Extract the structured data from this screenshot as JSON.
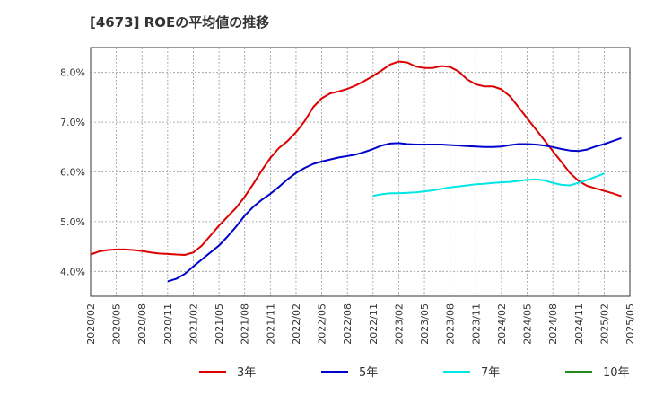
{
  "chart_data": {
    "type": "line",
    "title": "[4673]  ROEの平均値の推移",
    "xlabel": "",
    "ylabel": "",
    "ylim": [
      3.5,
      8.5
    ],
    "y_ticks": [
      4.0,
      5.0,
      6.0,
      7.0,
      8.0
    ],
    "y_tick_labels": [
      "4.0%",
      "5.0%",
      "6.0%",
      "7.0%",
      "8.0%"
    ],
    "x_tick_labels": [
      "2020/02",
      "2020/05",
      "2020/08",
      "2020/11",
      "2021/02",
      "2021/05",
      "2021/08",
      "2021/11",
      "2022/02",
      "2022/05",
      "2022/08",
      "2022/11",
      "2023/02",
      "2023/05",
      "2023/08",
      "2023/11",
      "2024/02",
      "2024/05",
      "2024/08",
      "2024/11",
      "2025/02",
      "2025/05"
    ],
    "x_start": "2020/02",
    "x_end": "2025/05",
    "grid": true,
    "legend_position": "bottom",
    "series": [
      {
        "name": "3年",
        "color": "#dd0000",
        "start": "2020/02",
        "values": [
          4.34,
          4.4,
          4.43,
          4.44,
          4.44,
          4.43,
          4.41,
          4.38,
          4.36,
          4.35,
          4.34,
          4.33,
          4.38,
          4.52,
          4.72,
          4.92,
          5.1,
          5.28,
          5.5,
          5.76,
          6.03,
          6.28,
          6.48,
          6.62,
          6.8,
          7.02,
          7.3,
          7.48,
          7.58,
          7.62,
          7.67,
          7.74,
          7.83,
          7.93,
          8.04,
          8.16,
          8.22,
          8.2,
          8.12,
          8.09,
          8.09,
          8.13,
          8.11,
          8.02,
          7.86,
          7.76,
          7.72,
          7.72,
          7.66,
          7.52,
          7.3,
          7.08,
          6.86,
          6.64,
          6.42,
          6.2,
          5.98,
          5.82,
          5.72,
          5.67,
          5.62,
          5.57,
          5.51
        ]
      },
      {
        "name": "5年",
        "color": "#0000cc",
        "start": "2020/11",
        "values": [
          3.8,
          3.85,
          3.95,
          4.1,
          4.24,
          4.38,
          4.52,
          4.7,
          4.9,
          5.12,
          5.3,
          5.44,
          5.56,
          5.7,
          5.85,
          5.98,
          6.08,
          6.16,
          6.21,
          6.25,
          6.29,
          6.32,
          6.35,
          6.4,
          6.46,
          6.53,
          6.57,
          6.58,
          6.56,
          6.55,
          6.55,
          6.55,
          6.55,
          6.54,
          6.53,
          6.52,
          6.51,
          6.5,
          6.5,
          6.51,
          6.54,
          6.56,
          6.56,
          6.55,
          6.53,
          6.5,
          6.46,
          6.43,
          6.42,
          6.45,
          6.51,
          6.56,
          6.62,
          6.68
        ]
      },
      {
        "name": "7年",
        "color": "#00e5e5",
        "start": "2022/11",
        "values": [
          5.52,
          5.55,
          5.57,
          5.57,
          5.58,
          5.59,
          5.61,
          5.63,
          5.66,
          5.69,
          5.71,
          5.73,
          5.75,
          5.76,
          5.78,
          5.79,
          5.8,
          5.82,
          5.84,
          5.85,
          5.83,
          5.78,
          5.74,
          5.73,
          5.78,
          5.84,
          5.9,
          5.97
        ]
      },
      {
        "name": "10年",
        "color": "#228b22",
        "start": "2025/05",
        "values": []
      }
    ]
  }
}
